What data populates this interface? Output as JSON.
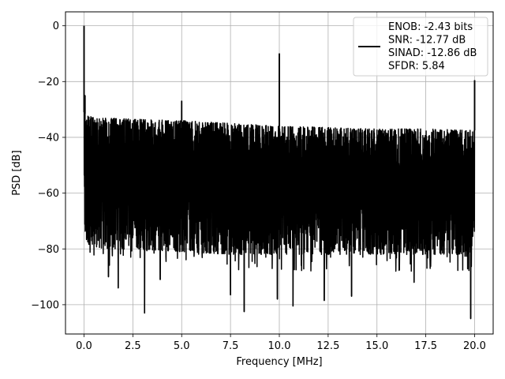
{
  "chart_data": {
    "type": "line",
    "title": "",
    "xlabel": "Frequency [MHz]",
    "ylabel": "PSD [dB]",
    "xlim": [
      -0.95,
      20.95
    ],
    "ylim": [
      -110.5,
      5.0
    ],
    "xticks": [
      0.0,
      2.5,
      5.0,
      7.5,
      10.0,
      12.5,
      15.0,
      17.5,
      20.0
    ],
    "xtick_labels": [
      "0.0",
      "2.5",
      "5.0",
      "7.5",
      "10.0",
      "12.5",
      "15.0",
      "17.5",
      "20.0"
    ],
    "yticks": [
      0,
      -20,
      -40,
      -60,
      -80,
      -100
    ],
    "ytick_labels": [
      "0",
      "−20",
      "−40",
      "−60",
      "−80",
      "−100"
    ],
    "grid": true,
    "legend_position": "top-right",
    "series": [
      {
        "name": "ENOB: -2.43 bits\nSNR: -12.77 dB\nSINAD: -12.86 dB\nSFDR: 5.84",
        "color": "#000000",
        "noise_floor": {
          "x": [
            0.0,
            0.1,
            0.5,
            1.0,
            2.5,
            5.0,
            7.5,
            10.0,
            12.5,
            15.0,
            17.5,
            20.0
          ],
          "upper": [
            -31,
            -32,
            -33,
            -33,
            -33.5,
            -34,
            -35,
            -36,
            -36.5,
            -37,
            -37,
            -37.5
          ],
          "lower": [
            -73,
            -78,
            -79,
            -80,
            -80,
            -81,
            -82,
            -82,
            -82,
            -82,
            -82,
            -82
          ]
        },
        "spurs": [
          {
            "x": 0.0,
            "y": 0.0
          },
          {
            "x": 0.05,
            "y": -25.0
          },
          {
            "x": 5.0,
            "y": -27.0
          },
          {
            "x": 10.0,
            "y": -10.0
          },
          {
            "x": 20.0,
            "y": -19.5
          }
        ],
        "deep_dips": [
          {
            "x": 1.25,
            "y": -90.0
          },
          {
            "x": 1.75,
            "y": -94.0
          },
          {
            "x": 3.1,
            "y": -103.0
          },
          {
            "x": 3.9,
            "y": -91.0
          },
          {
            "x": 7.5,
            "y": -96.5
          },
          {
            "x": 8.2,
            "y": -102.5
          },
          {
            "x": 9.9,
            "y": -98.0
          },
          {
            "x": 10.7,
            "y": -100.5
          },
          {
            "x": 12.3,
            "y": -98.5
          },
          {
            "x": 13.7,
            "y": -97.0
          },
          {
            "x": 16.9,
            "y": -92.0
          },
          {
            "x": 19.8,
            "y": -105.0
          }
        ]
      }
    ]
  }
}
